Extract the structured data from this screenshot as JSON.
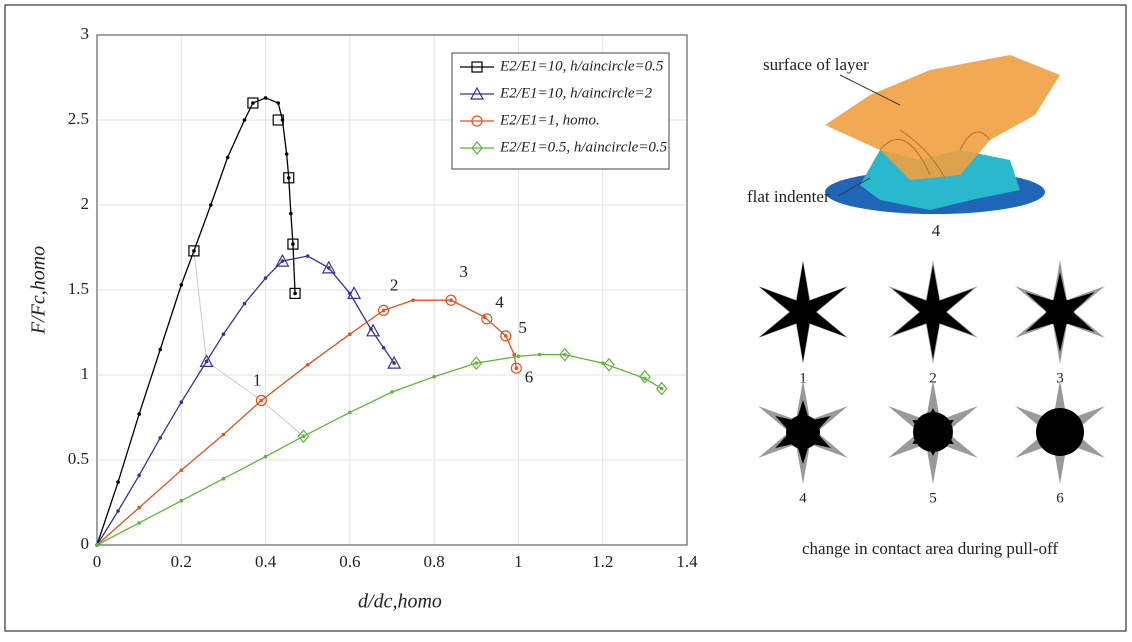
{
  "chart_data": {
    "type": "line",
    "xlabel": "d/dc,homo",
    "ylabel": "F/Fc,homo",
    "xlim": [
      0,
      1.4
    ],
    "xticks": [
      0,
      0.2,
      0.4,
      0.6,
      0.8,
      1,
      1.2,
      1.4
    ],
    "ylim": [
      0,
      3
    ],
    "yticks": [
      0,
      0.5,
      1,
      1.5,
      2,
      2.5,
      3
    ],
    "grid": true,
    "legend": "upper right",
    "series": [
      {
        "name": "E2/E1=10, h/aincircle=0.5",
        "color": "#000000",
        "marker": "square",
        "x": [
          0,
          0.05,
          0.1,
          0.15,
          0.2,
          0.23,
          0.27,
          0.31,
          0.35,
          0.37,
          0.4,
          0.43,
          0.44,
          0.45,
          0.455,
          0.46,
          0.465,
          0.47
        ],
        "values": [
          0,
          0.37,
          0.77,
          1.15,
          1.53,
          1.73,
          2.0,
          2.28,
          2.5,
          2.6,
          2.63,
          2.6,
          2.5,
          2.3,
          2.16,
          1.95,
          1.77,
          1.48
        ],
        "marker_x": [
          0.23,
          0.37,
          0.43,
          0.455,
          0.465,
          0.47
        ],
        "marker_values": [
          1.73,
          2.6,
          2.5,
          2.16,
          1.77,
          1.48
        ]
      },
      {
        "name": "E2/E1=10, h/aincircle=2",
        "color": "#3a2fa0",
        "marker": "triangle",
        "x": [
          0,
          0.05,
          0.1,
          0.15,
          0.2,
          0.26,
          0.3,
          0.35,
          0.4,
          0.44,
          0.5,
          0.55,
          0.6,
          0.65,
          0.68,
          0.705
        ],
        "values": [
          0,
          0.2,
          0.41,
          0.63,
          0.84,
          1.08,
          1.24,
          1.42,
          1.57,
          1.67,
          1.7,
          1.63,
          1.48,
          1.27,
          1.16,
          1.07
        ],
        "marker_x": [
          0.26,
          0.44,
          0.55,
          0.61,
          0.655,
          0.705
        ],
        "marker_values": [
          1.08,
          1.67,
          1.63,
          1.48,
          1.26,
          1.07
        ]
      },
      {
        "name": "E2/E1=1, homo.",
        "color": "#e8501e",
        "marker": "circle",
        "x": [
          0,
          0.1,
          0.2,
          0.3,
          0.39,
          0.5,
          0.6,
          0.68,
          0.75,
          0.84,
          0.92,
          0.97,
          0.99,
          0.995
        ],
        "values": [
          0,
          0.22,
          0.44,
          0.65,
          0.85,
          1.06,
          1.24,
          1.38,
          1.44,
          1.44,
          1.34,
          1.23,
          1.12,
          1.04
        ],
        "marker_x": [
          0.39,
          0.68,
          0.84,
          0.925,
          0.97,
          0.995
        ],
        "marker_values": [
          0.85,
          1.38,
          1.44,
          1.33,
          1.23,
          1.04
        ]
      },
      {
        "name": "E2/E1=0.5, h/aincircle=0.5",
        "color": "#5cb83a",
        "marker": "diamond",
        "x": [
          0,
          0.1,
          0.2,
          0.3,
          0.4,
          0.49,
          0.6,
          0.7,
          0.8,
          0.9,
          1.0,
          1.05,
          1.11,
          1.2,
          1.3,
          1.34
        ],
        "values": [
          0,
          0.13,
          0.26,
          0.39,
          0.52,
          0.64,
          0.78,
          0.9,
          0.99,
          1.07,
          1.11,
          1.12,
          1.12,
          1.07,
          0.98,
          0.92
        ],
        "marker_x": [
          0.49,
          0.9,
          1.11,
          1.215,
          1.3,
          1.34
        ],
        "marker_values": [
          0.64,
          1.07,
          1.12,
          1.06,
          0.99,
          0.92
        ]
      }
    ],
    "annotations": [
      {
        "text": "1",
        "x": 0.38,
        "y": 0.96
      },
      {
        "text": "2",
        "x": 0.705,
        "y": 1.52
      },
      {
        "text": "3",
        "x": 0.87,
        "y": 1.6
      },
      {
        "text": "4",
        "x": 0.955,
        "y": 1.42
      },
      {
        "text": "5",
        "x": 1.01,
        "y": 1.27
      },
      {
        "text": "6",
        "x": 1.025,
        "y": 0.98
      }
    ]
  },
  "inset": {
    "surface_label": "surface of layer",
    "indenter_label": "flat indenter",
    "view_label": "4",
    "stage_labels": [
      "1",
      "2",
      "3",
      "4",
      "5",
      "6"
    ],
    "caption": "change in contact area during pull-off"
  }
}
